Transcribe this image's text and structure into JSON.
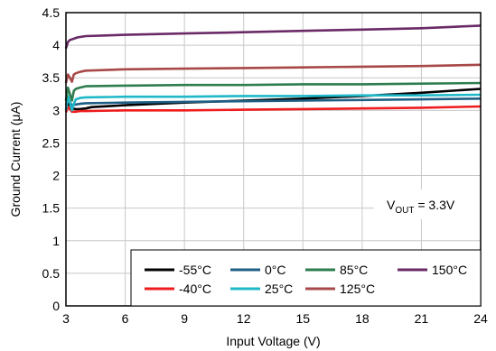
{
  "chart_data": {
    "type": "line",
    "title": "",
    "xlabel": "Input Voltage (V)",
    "ylabel": "Ground Current (μA)",
    "xlim": [
      3,
      24
    ],
    "ylim": [
      0,
      4.5
    ],
    "xticks": [
      "3",
      "6",
      "9",
      "12",
      "15",
      "18",
      "21",
      "24"
    ],
    "yticks": [
      "0",
      "0.5",
      "1",
      "1.5",
      "2",
      "2.5",
      "3",
      "3.5",
      "4",
      "4.5"
    ],
    "grid": true,
    "legend_position": "bottom-right",
    "annotation": {
      "prefix": "V",
      "subscript": "OUT",
      "suffix": " = 3.3V"
    },
    "series": [
      {
        "name": "-55°C",
        "color": "#000000",
        "x": [
          3.0,
          3.1,
          3.2,
          3.3,
          3.5,
          3.7,
          4.0,
          4.3,
          6,
          9,
          12,
          15,
          18,
          21,
          24
        ],
        "y": [
          3.02,
          3.1,
          3.08,
          3.03,
          3.02,
          3.02,
          3.03,
          3.05,
          3.08,
          3.12,
          3.15,
          3.18,
          3.22,
          3.27,
          3.33
        ]
      },
      {
        "name": "-40°C",
        "color": "#ee1c1c",
        "x": [
          3.0,
          3.1,
          3.2,
          3.3,
          3.5,
          3.7,
          4.0,
          6,
          9,
          12,
          15,
          18,
          21,
          24
        ],
        "y": [
          2.97,
          3.05,
          3.02,
          2.98,
          2.98,
          2.99,
          2.99,
          3.0,
          3.0,
          3.01,
          3.02,
          3.03,
          3.04,
          3.06
        ]
      },
      {
        "name": "0°C",
        "color": "#1f5f86",
        "x": [
          3.0,
          3.1,
          3.2,
          3.3,
          3.5,
          3.7,
          4.0,
          6,
          9,
          12,
          15,
          18,
          21,
          24
        ],
        "y": [
          3.08,
          3.16,
          3.12,
          3.08,
          3.09,
          3.1,
          3.11,
          3.12,
          3.13,
          3.14,
          3.15,
          3.16,
          3.17,
          3.18
        ]
      },
      {
        "name": "25°C",
        "color": "#1fb8c8",
        "x": [
          3.0,
          3.1,
          3.2,
          3.3,
          3.4,
          3.5,
          3.7,
          4.0,
          6,
          9,
          12,
          15,
          18,
          21,
          24
        ],
        "y": [
          3.0,
          3.22,
          3.12,
          3.0,
          3.1,
          3.17,
          3.19,
          3.2,
          3.21,
          3.21,
          3.22,
          3.22,
          3.23,
          3.23,
          3.24
        ]
      },
      {
        "name": "85°C",
        "color": "#2e7d4f",
        "x": [
          3.0,
          3.1,
          3.2,
          3.3,
          3.4,
          3.5,
          3.7,
          4.0,
          6,
          9,
          12,
          15,
          18,
          21,
          24
        ],
        "y": [
          3.15,
          3.35,
          3.25,
          3.15,
          3.3,
          3.33,
          3.35,
          3.37,
          3.38,
          3.39,
          3.39,
          3.4,
          3.4,
          3.41,
          3.42
        ]
      },
      {
        "name": "125°C",
        "color": "#a84848",
        "x": [
          3.0,
          3.1,
          3.2,
          3.3,
          3.4,
          3.5,
          3.7,
          4.0,
          6,
          9,
          12,
          15,
          18,
          21,
          24
        ],
        "y": [
          3.42,
          3.55,
          3.5,
          3.44,
          3.55,
          3.57,
          3.59,
          3.61,
          3.63,
          3.64,
          3.65,
          3.66,
          3.67,
          3.68,
          3.7
        ]
      },
      {
        "name": "150°C",
        "color": "#6a2a66",
        "x": [
          3.0,
          3.1,
          3.2,
          3.4,
          3.6,
          4.0,
          5,
          6,
          9,
          12,
          15,
          18,
          21,
          24
        ],
        "y": [
          3.95,
          4.05,
          4.08,
          4.1,
          4.12,
          4.14,
          4.15,
          4.16,
          4.18,
          4.2,
          4.22,
          4.24,
          4.26,
          4.3
        ]
      }
    ]
  }
}
